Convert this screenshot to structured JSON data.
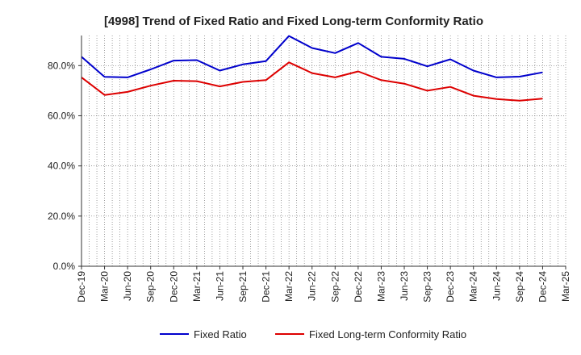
{
  "chart_data": {
    "type": "line",
    "title": "[4998]  Trend of Fixed Ratio and Fixed Long-term Conformity Ratio",
    "xlabel": "",
    "ylabel": "",
    "x": [
      "Dec-19",
      "Mar-20",
      "Jun-20",
      "Sep-20",
      "Dec-20",
      "Mar-21",
      "Jun-21",
      "Sep-21",
      "Dec-21",
      "Mar-22",
      "Jun-22",
      "Sep-22",
      "Dec-22",
      "Mar-23",
      "Jun-23",
      "Sep-23",
      "Dec-23",
      "Mar-24",
      "Jun-24",
      "Sep-24",
      "Dec-24",
      "Mar-25"
    ],
    "ylim": [
      0,
      92
    ],
    "yticks": [
      0,
      20,
      40,
      60,
      80
    ],
    "ytick_labels": [
      "0.0%",
      "20.0%",
      "40.0%",
      "60.0%",
      "80.0%"
    ],
    "grid": true,
    "legend_position": "bottom-center",
    "series": [
      {
        "name": "Fixed Ratio",
        "color": "#0000cc",
        "values": [
          83.5,
          75.5,
          75.3,
          78.5,
          82.0,
          82.2,
          78.0,
          80.5,
          81.8,
          91.8,
          87.0,
          85.0,
          89.0,
          83.5,
          82.7,
          79.7,
          82.5,
          78.0,
          75.3,
          75.6,
          77.3,
          null
        ]
      },
      {
        "name": "Fixed Long-term Conformity Ratio",
        "color": "#dd0000",
        "values": [
          75.3,
          68.3,
          69.5,
          72.0,
          74.0,
          73.8,
          71.7,
          73.5,
          74.2,
          81.3,
          77.0,
          75.3,
          77.7,
          74.2,
          72.8,
          70.0,
          71.5,
          68.0,
          66.7,
          66.0,
          66.8,
          null
        ]
      }
    ]
  }
}
